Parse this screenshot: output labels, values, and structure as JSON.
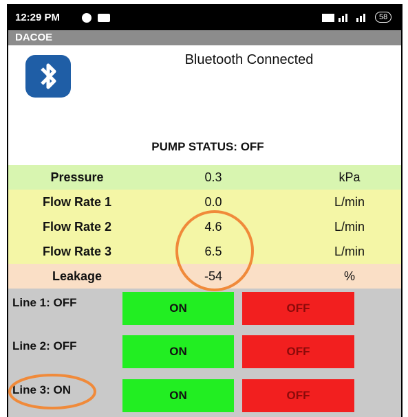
{
  "status_bar": {
    "time": "12:29 PM",
    "battery": "58"
  },
  "app_bar": {
    "title": "DACOE"
  },
  "header": {
    "connection": "Bluetooth Connected",
    "pump_status": "PUMP STATUS: OFF"
  },
  "table": {
    "rows": [
      [
        "Pressure",
        "0.3",
        "kPa"
      ],
      [
        "Flow Rate 1",
        "0.0",
        "L/min"
      ],
      [
        "Flow Rate 2",
        "4.6",
        "L/min"
      ],
      [
        "Flow Rate 3",
        "6.5",
        "L/min"
      ],
      [
        "Leakage",
        "-54",
        "%"
      ]
    ]
  },
  "lines": [
    {
      "label": "Line 1: OFF",
      "on": "ON",
      "off": "OFF"
    },
    {
      "label": "Line 2: OFF",
      "on": "ON",
      "off": "OFF"
    },
    {
      "label": "Line 3: ON",
      "on": "ON",
      "off": "OFF"
    }
  ]
}
